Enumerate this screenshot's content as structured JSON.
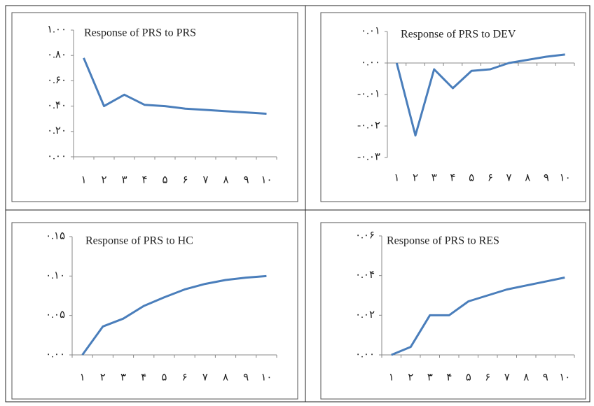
{
  "chart_data": [
    {
      "type": "line",
      "title": "Response of PRS to PRS",
      "categories": [
        "۱",
        "۲",
        "۳",
        "۴",
        "۵",
        "۶",
        "۷",
        "۸",
        "۹",
        "۱۰"
      ],
      "values": [
        0.78,
        0.4,
        0.49,
        0.41,
        0.4,
        0.38,
        0.37,
        0.36,
        0.35,
        0.34
      ],
      "color": "#4a7ebb",
      "ylim": [
        0,
        1
      ],
      "yticks": [
        {
          "value": 0,
          "label": "۰.۰۰"
        },
        {
          "value": 0.2,
          "label": "۰.۲۰"
        },
        {
          "value": 0.4,
          "label": "۰.۴۰"
        },
        {
          "value": 0.6,
          "label": "۰.۶۰"
        },
        {
          "value": 0.8,
          "label": "۰.۸۰"
        },
        {
          "value": 1,
          "label": "۱.۰۰"
        }
      ]
    },
    {
      "type": "line",
      "title": "Response of PRS to DEV",
      "categories": [
        "۱",
        "۲",
        "۳",
        "۴",
        "۵",
        "۶",
        "۷",
        "۸",
        "۹",
        "۱۰"
      ],
      "values": [
        0,
        -0.023,
        -0.002,
        -0.008,
        -0.0025,
        -0.002,
        0,
        0.001,
        0.002,
        0.0027
      ],
      "color": "#4a7ebb",
      "ylim": [
        -0.03,
        0.01
      ],
      "yticks": [
        {
          "value": -0.03,
          "label": "-۰.۰۳"
        },
        {
          "value": -0.02,
          "label": "-۰.۰۲"
        },
        {
          "value": -0.01,
          "label": "-۰.۰۱"
        },
        {
          "value": 0,
          "label": "۰.۰۰"
        },
        {
          "value": 0.01,
          "label": "۰.۰۱"
        }
      ]
    },
    {
      "type": "line",
      "title": "Response of PRS to HC",
      "categories": [
        "۱",
        "۲",
        "۳",
        "۴",
        "۵",
        "۶",
        "۷",
        "۸",
        "۹",
        "۱۰"
      ],
      "values": [
        0,
        0.036,
        0.046,
        0.062,
        0.073,
        0.083,
        0.09,
        0.095,
        0.098,
        0.1
      ],
      "color": "#4a7ebb",
      "ylim": [
        0,
        0.15
      ],
      "yticks": [
        {
          "value": 0,
          "label": "۰.۰۰"
        },
        {
          "value": 0.05,
          "label": "۰.۰۵"
        },
        {
          "value": 0.1,
          "label": "۰.۱۰"
        },
        {
          "value": 0.15,
          "label": "۰.۱۵"
        }
      ]
    },
    {
      "type": "line",
      "title": "Response of PRS to RES",
      "categories": [
        "۱",
        "۲",
        "۳",
        "۴",
        "۵",
        "۶",
        "۷",
        "۸",
        "۹",
        "۱۰"
      ],
      "values": [
        0,
        0.004,
        0.02,
        0.02,
        0.027,
        0.03,
        0.033,
        0.035,
        0.037,
        0.039
      ],
      "color": "#4a7ebb",
      "ylim": [
        0,
        0.06
      ],
      "yticks": [
        {
          "value": 0,
          "label": "۰.۰۰"
        },
        {
          "value": 0.02,
          "label": "۰.۰۲"
        },
        {
          "value": 0.04,
          "label": "۰.۰۴"
        },
        {
          "value": 0.06,
          "label": "۰.۰۶"
        }
      ]
    }
  ]
}
